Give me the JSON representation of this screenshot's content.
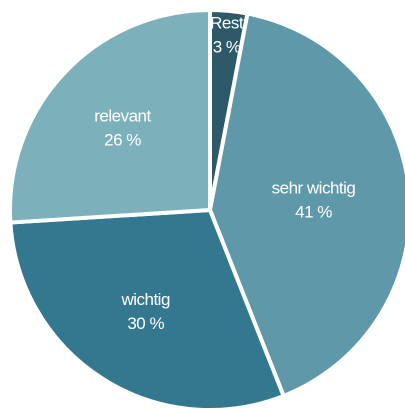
{
  "chart_data": {
    "type": "pie",
    "title": "",
    "legend": "none",
    "start_angle_deg": 0,
    "direction": "clockwise",
    "slices": [
      {
        "label": "Rest",
        "value": 3,
        "value_label": "3 %",
        "color": "#2d5968"
      },
      {
        "label": "sehr wichtig",
        "value": 41,
        "value_label": "41 %",
        "color": "#5f98a9"
      },
      {
        "label": "wichtig",
        "value": 30,
        "value_label": "30 %",
        "color": "#34788f"
      },
      {
        "label": "relevant",
        "value": 26,
        "value_label": "26 %",
        "color": "#7cb1bb"
      }
    ]
  }
}
